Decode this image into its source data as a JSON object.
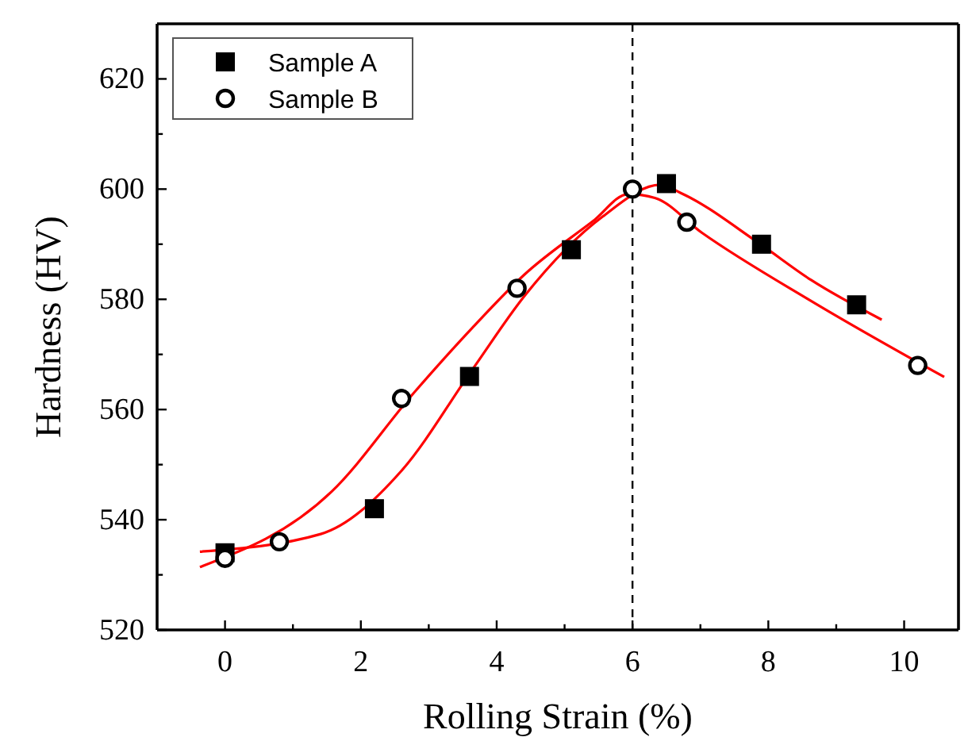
{
  "chart_data": {
    "type": "scatter",
    "xlabel": "Rolling Strain (%)",
    "ylabel": "Hardness (HV)",
    "xlim": [
      -1,
      10.8
    ],
    "xticks": [
      0,
      {
        "value": 1,
        "label": null
      },
      2,
      {
        "value": 3,
        "label": null
      },
      4,
      {
        "value": 5,
        "label": null
      },
      6,
      {
        "value": 7,
        "label": null
      },
      8,
      {
        "value": 9,
        "label": null
      },
      10
    ],
    "ylim": [
      520,
      630
    ],
    "yticks": [
      520,
      {
        "value": 530,
        "label": null
      },
      540,
      {
        "value": 550,
        "label": null
      },
      560,
      {
        "value": 570,
        "label": null
      },
      580,
      {
        "value": 590,
        "label": null
      },
      600,
      {
        "value": 610,
        "label": null
      },
      620
    ],
    "grid": false,
    "legend": "top left",
    "ref_lines": [
      {
        "axis": "x",
        "value": 6,
        "color": "#000000",
        "line_style": "dashed"
      }
    ],
    "series": [
      {
        "name": "Sample A",
        "marker": "square",
        "color": "#000000",
        "x": [
          0,
          2.2,
          3.6,
          5.1,
          6.5,
          7.9,
          9.3
        ],
        "values": [
          534,
          542,
          566,
          589,
          601,
          590,
          579
        ]
      },
      {
        "name": "Sample B",
        "marker": "circle",
        "color": "#000000",
        "x": [
          0,
          0.8,
          2.6,
          4.3,
          6.0,
          6.8,
          10.2
        ],
        "values": [
          533,
          536,
          562,
          582,
          600,
          594,
          568
        ]
      },
      {
        "type": "line",
        "marker": "none",
        "color": "#ff0000",
        "x": [
          -0.37,
          1.41,
          2.6,
          3.64,
          4.41,
          5.56,
          6.41,
          6.71,
          7.86,
          8.63,
          9.67
        ],
        "values": [
          534.2,
          537.4,
          548.9,
          567.2,
          580.6,
          595.0,
          600.8,
          599.3,
          590.2,
          583.5,
          576.3
        ]
      },
      {
        "type": "line",
        "marker": "none",
        "color": "#ff0000",
        "x": [
          -0.37,
          1.57,
          2.8,
          3.64,
          4.41,
          5.41,
          5.94,
          6.33,
          7.02,
          8.63,
          10.59
        ],
        "values": [
          531.4,
          545.1,
          563.3,
          574.8,
          584.5,
          594.1,
          599.1,
          598.4,
          592.1,
          579.7,
          565.9
        ]
      }
    ]
  }
}
